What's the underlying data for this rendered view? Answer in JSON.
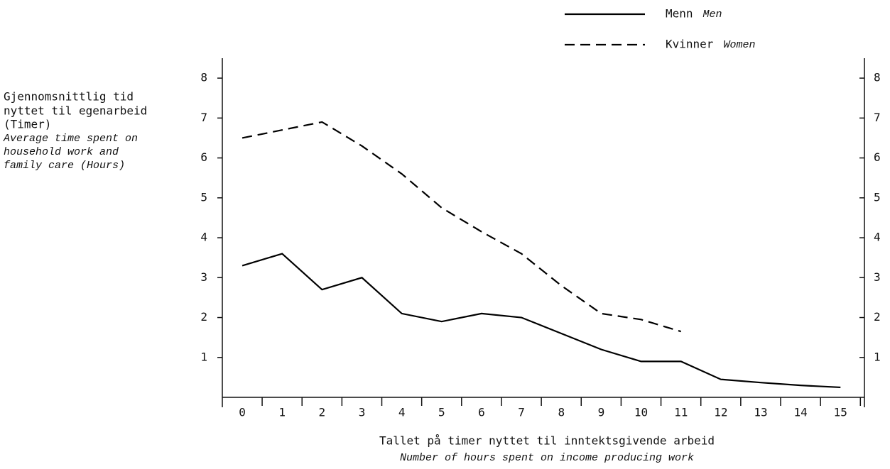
{
  "chart_data": {
    "type": "line",
    "y_label": [
      "Gjennomsnittlig tid",
      "nyttet til egenarbeid",
      "(Timer)"
    ],
    "y_label_en": [
      "Average time spent on",
      "household work and",
      "family care (Hours)"
    ],
    "x_label": "Tallet på timer nyttet til inntektsgivende arbeid",
    "x_label_en": "Number of hours spent on income producing work",
    "x": [
      0,
      1,
      2,
      3,
      4,
      5,
      6,
      7,
      8,
      9,
      10,
      11,
      12,
      13,
      14,
      15
    ],
    "series": [
      {
        "name": "Menn",
        "name_en": "Men",
        "color": "#000000",
        "dash": "solid",
        "values": [
          3.3,
          3.6,
          2.7,
          3.0,
          2.1,
          1.9,
          2.1,
          2.0,
          1.6,
          1.2,
          0.9,
          0.9,
          0.45,
          0.37,
          0.3,
          0.25
        ]
      },
      {
        "name": "Kvinner",
        "name_en": "Women",
        "color": "#000000",
        "dash": "dashed",
        "values": [
          6.5,
          6.7,
          6.9,
          6.3,
          5.6,
          4.75,
          4.15,
          3.6,
          2.8,
          2.1,
          1.95,
          1.65,
          null,
          null,
          null,
          null
        ]
      }
    ],
    "xlim": [
      -0.5,
      15.6
    ],
    "xticks": [
      0,
      1,
      2,
      3,
      4,
      5,
      6,
      7,
      8,
      9,
      10,
      11,
      12,
      13,
      14,
      15
    ],
    "ylim": [
      0,
      8.5
    ],
    "yticks": [
      1,
      2,
      3,
      4,
      5,
      6,
      7,
      8
    ],
    "right_axis": true,
    "grid": false
  }
}
